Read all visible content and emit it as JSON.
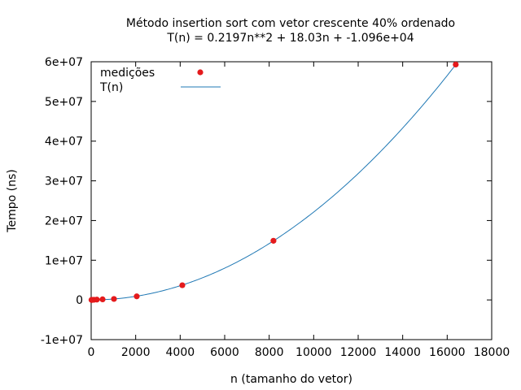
{
  "chart_data": {
    "type": "scatter",
    "title": "Método insertion sort com vetor crescente 40% ordenado",
    "subtitle": "T(n) = 0.2197n**2 + 18.03n + -1.096e+04",
    "xlabel": "n (tamanho do vetor)",
    "ylabel": "Tempo (ns)",
    "xlim": [
      0,
      18000
    ],
    "ylim": [
      -10000000,
      60000000
    ],
    "x_ticks": [
      0,
      2000,
      4000,
      6000,
      8000,
      10000,
      12000,
      14000,
      16000,
      18000
    ],
    "x_tick_labels": [
      "0",
      "2000",
      "4000",
      "6000",
      "8000",
      "10000",
      "12000",
      "14000",
      "16000",
      "18000"
    ],
    "y_ticks": [
      -10000000,
      0,
      10000000,
      20000000,
      30000000,
      40000000,
      50000000,
      60000000
    ],
    "y_tick_labels": [
      "-1e+07",
      "0",
      "1e+07",
      "2e+07",
      "3e+07",
      "4e+07",
      "5e+07",
      "6e+07"
    ],
    "grid": false,
    "legend_position": "top-left",
    "series": [
      {
        "name": "medições",
        "kind": "points",
        "color": "#e41a1c",
        "x": [
          16,
          32,
          64,
          128,
          256,
          512,
          1024,
          2048,
          4096,
          8192,
          16384
        ],
        "y": [
          5000,
          10000,
          20000,
          40000,
          80000,
          150000,
          250000,
          900000,
          3700000,
          14900000,
          59300000
        ]
      },
      {
        "name": "T(n)",
        "kind": "curve",
        "color": "#1f78b4",
        "coefficients": {
          "a": 0.2197,
          "b": 18.03,
          "c": -10960
        },
        "x_range": [
          0,
          16384
        ]
      }
    ]
  }
}
